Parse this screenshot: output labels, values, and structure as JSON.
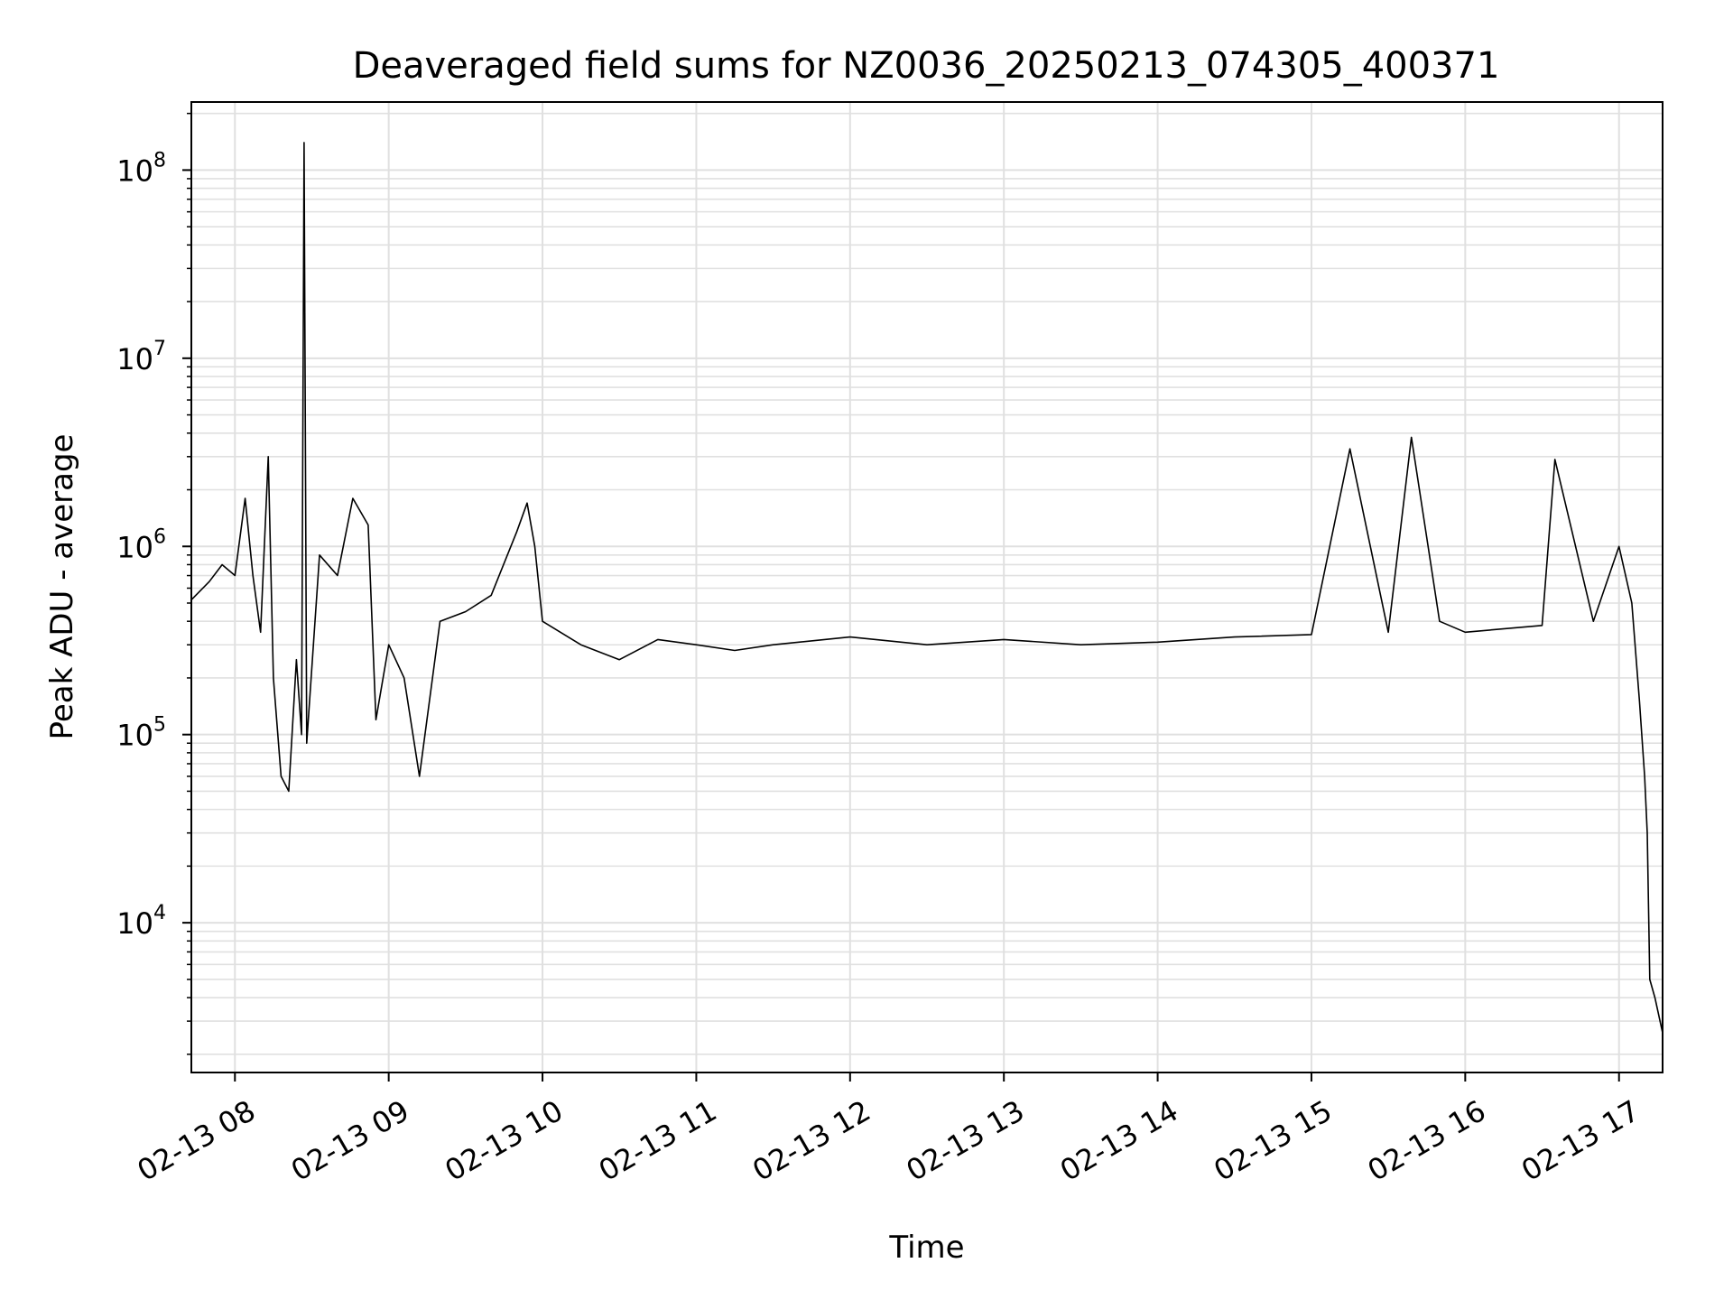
{
  "chart_data": {
    "type": "line",
    "title": "Deaveraged field sums for NZ0036_20250213_074305_400371",
    "xlabel": "Time",
    "ylabel": "Peak ADU - average",
    "yscale": "log",
    "ylim": [
      1600,
      230000000
    ],
    "xlim": [
      "02-13 07:43",
      "02-13 17:17"
    ],
    "grid": true,
    "line_color": "#000000",
    "grid_color": "#e0e0e0",
    "x_ticks": [
      {
        "value": "02-13 08:00",
        "label": "02-13 08"
      },
      {
        "value": "02-13 09:00",
        "label": "02-13 09"
      },
      {
        "value": "02-13 10:00",
        "label": "02-13 10"
      },
      {
        "value": "02-13 11:00",
        "label": "02-13 11"
      },
      {
        "value": "02-13 12:00",
        "label": "02-13 12"
      },
      {
        "value": "02-13 13:00",
        "label": "02-13 13"
      },
      {
        "value": "02-13 14:00",
        "label": "02-13 14"
      },
      {
        "value": "02-13 15:00",
        "label": "02-13 15"
      },
      {
        "value": "02-13 16:00",
        "label": "02-13 16"
      },
      {
        "value": "02-13 17:00",
        "label": "02-13 17"
      }
    ],
    "y_ticks": [
      {
        "value": 10000,
        "base": "10",
        "exp": "4"
      },
      {
        "value": 100000,
        "base": "10",
        "exp": "5"
      },
      {
        "value": 1000000,
        "base": "10",
        "exp": "6"
      },
      {
        "value": 10000000,
        "base": "10",
        "exp": "7"
      },
      {
        "value": 100000000,
        "base": "10",
        "exp": "8"
      }
    ],
    "series": [
      {
        "points": [
          [
            "02-13 07:43",
            520000
          ],
          [
            "02-13 07:50",
            650000
          ],
          [
            "02-13 07:55",
            800000
          ],
          [
            "02-13 08:00",
            700000
          ],
          [
            "02-13 08:04",
            1800000
          ],
          [
            "02-13 08:07",
            700000
          ],
          [
            "02-13 08:10",
            350000
          ],
          [
            "02-13 08:13",
            3000000
          ],
          [
            "02-13 08:15",
            200000
          ],
          [
            "02-13 08:18",
            60000
          ],
          [
            "02-13 08:21",
            50000
          ],
          [
            "02-13 08:24",
            250000
          ],
          [
            "02-13 08:26",
            100000
          ],
          [
            "02-13 08:27",
            140000000
          ],
          [
            "02-13 08:28",
            90000
          ],
          [
            "02-13 08:33",
            900000
          ],
          [
            "02-13 08:40",
            700000
          ],
          [
            "02-13 08:46",
            1800000
          ],
          [
            "02-13 08:52",
            1300000
          ],
          [
            "02-13 08:55",
            120000
          ],
          [
            "02-13 09:00",
            300000
          ],
          [
            "02-13 09:06",
            200000
          ],
          [
            "02-13 09:12",
            60000
          ],
          [
            "02-13 09:20",
            400000
          ],
          [
            "02-13 09:30",
            450000
          ],
          [
            "02-13 09:40",
            550000
          ],
          [
            "02-13 09:50",
            1200000
          ],
          [
            "02-13 09:54",
            1700000
          ],
          [
            "02-13 09:57",
            1000000
          ],
          [
            "02-13 10:00",
            400000
          ],
          [
            "02-13 10:15",
            300000
          ],
          [
            "02-13 10:30",
            250000
          ],
          [
            "02-13 10:45",
            320000
          ],
          [
            "02-13 11:00",
            300000
          ],
          [
            "02-13 11:15",
            280000
          ],
          [
            "02-13 11:30",
            300000
          ],
          [
            "02-13 12:00",
            330000
          ],
          [
            "02-13 12:30",
            300000
          ],
          [
            "02-13 13:00",
            320000
          ],
          [
            "02-13 13:30",
            300000
          ],
          [
            "02-13 14:00",
            310000
          ],
          [
            "02-13 14:30",
            330000
          ],
          [
            "02-13 15:00",
            340000
          ],
          [
            "02-13 15:15",
            3300000
          ],
          [
            "02-13 15:30",
            350000
          ],
          [
            "02-13 15:39",
            3800000
          ],
          [
            "02-13 15:50",
            400000
          ],
          [
            "02-13 16:00",
            350000
          ],
          [
            "02-13 16:30",
            380000
          ],
          [
            "02-13 16:35",
            2900000
          ],
          [
            "02-13 16:50",
            400000
          ],
          [
            "02-13 17:00",
            1000000
          ],
          [
            "02-13 17:05",
            500000
          ],
          [
            "02-13 17:08",
            150000
          ],
          [
            "02-13 17:10",
            60000
          ],
          [
            "02-13 17:11",
            30000
          ],
          [
            "02-13 17:12",
            5000
          ],
          [
            "02-13 17:14",
            4000
          ],
          [
            "02-13 17:17",
            2600
          ]
        ]
      }
    ]
  }
}
